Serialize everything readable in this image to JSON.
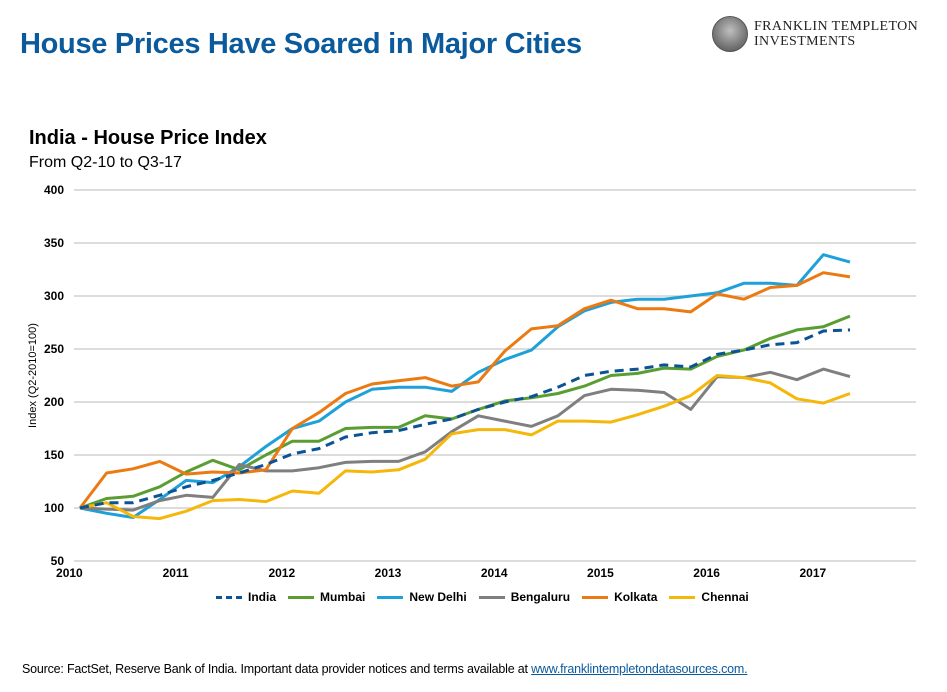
{
  "header": {
    "title": "House Prices Have Soared in Major Cities",
    "logo_line1": "FRANKLIN TEMPLETON",
    "logo_line2": "INVESTMENTS"
  },
  "footer": {
    "source_text": "Source: FactSet, Reserve Bank of India. Important data provider notices and terms available at ",
    "link_text": "www.franklintempletondatasources.com."
  },
  "chart_data": {
    "type": "line",
    "title": "India - House Price Index",
    "subtitle": "From Q2-10 to Q3-17",
    "xlabel": "",
    "ylabel": "Index (Q2-2010=100)",
    "ylim": [
      50,
      400
    ],
    "yticks": [
      50,
      100,
      150,
      200,
      250,
      300,
      350,
      400
    ],
    "grid": true,
    "legend_position": "bottom",
    "x": [
      "Q2-10",
      "Q3-10",
      "Q4-10",
      "Q1-11",
      "Q2-11",
      "Q3-11",
      "Q4-11",
      "Q1-12",
      "Q2-12",
      "Q3-12",
      "Q4-12",
      "Q1-13",
      "Q2-13",
      "Q3-13",
      "Q4-13",
      "Q1-14",
      "Q2-14",
      "Q3-14",
      "Q4-14",
      "Q1-15",
      "Q2-15",
      "Q3-15",
      "Q4-15",
      "Q1-16",
      "Q2-16",
      "Q3-16",
      "Q4-16",
      "Q1-17",
      "Q2-17",
      "Q3-17"
    ],
    "xtick_labels": [
      "2010",
      "2011",
      "2012",
      "2013",
      "2014",
      "2015",
      "2016",
      "2017"
    ],
    "series": [
      {
        "name": "India",
        "color": "#0b5394",
        "dashed": true,
        "values": [
          100,
          105,
          105,
          112,
          120,
          126,
          133,
          141,
          151,
          156,
          167,
          171,
          173,
          179,
          184,
          193,
          200,
          205,
          214,
          225,
          229,
          231,
          235,
          233,
          245,
          249,
          254,
          256,
          267,
          268
        ]
      },
      {
        "name": "Mumbai",
        "color": "#5a9e32",
        "dashed": false,
        "values": [
          100,
          109,
          111,
          120,
          134,
          145,
          136,
          150,
          163,
          163,
          175,
          176,
          176,
          187,
          184,
          193,
          201,
          204,
          208,
          215,
          225,
          227,
          232,
          231,
          243,
          249,
          260,
          268,
          271,
          281
        ]
      },
      {
        "name": "New Delhi",
        "color": "#1ea0d8",
        "dashed": false,
        "values": [
          100,
          95,
          91,
          108,
          126,
          124,
          139,
          158,
          175,
          182,
          200,
          212,
          214,
          214,
          210,
          228,
          240,
          249,
          271,
          286,
          294,
          297,
          297,
          300,
          303,
          312,
          312,
          310,
          339,
          332
        ]
      },
      {
        "name": "Bengaluru",
        "color": "#7f7f7f",
        "dashed": false,
        "values": [
          100,
          99,
          98,
          107,
          112,
          110,
          141,
          135,
          135,
          138,
          143,
          144,
          144,
          153,
          172,
          187,
          182,
          177,
          187,
          206,
          212,
          211,
          209,
          193,
          224,
          223,
          228,
          221,
          231,
          224
        ]
      },
      {
        "name": "Kolkata",
        "color": "#ec7a12",
        "dashed": false,
        "values": [
          100,
          133,
          137,
          144,
          132,
          134,
          133,
          136,
          175,
          190,
          208,
          217,
          220,
          223,
          215,
          219,
          248,
          269,
          272,
          288,
          296,
          288,
          288,
          285,
          302,
          297,
          308,
          310,
          322,
          318
        ]
      },
      {
        "name": "Chennai",
        "color": "#f5b70a",
        "dashed": false,
        "values": [
          100,
          105,
          92,
          90,
          97,
          107,
          108,
          106,
          116,
          114,
          135,
          134,
          136,
          146,
          170,
          174,
          174,
          169,
          182,
          182,
          181,
          188,
          196,
          206,
          225,
          223,
          218,
          203,
          199,
          208
        ]
      }
    ]
  }
}
